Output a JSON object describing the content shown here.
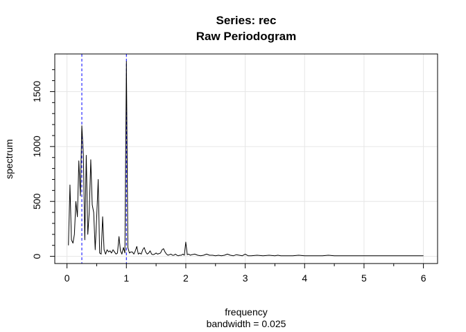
{
  "chart_data": {
    "type": "line",
    "title": "Series: rec",
    "subtitle": "Raw Periodogram",
    "xlabel": "frequency",
    "xlabel_sub": "bandwidth = 0.025",
    "ylabel": "spectrum",
    "xlim": [
      0,
      6
    ],
    "ylim": [
      0,
      1780
    ],
    "x_ticks": [
      0,
      1,
      2,
      3,
      4,
      5,
      6
    ],
    "x_tick_labels": [
      "0",
      "1",
      "2",
      "3",
      "4",
      "5",
      "6"
    ],
    "y_ticks": [
      0,
      500,
      1000,
      1500
    ],
    "y_tick_labels": [
      "0",
      "500",
      "1000",
      "1500"
    ],
    "grid": true,
    "line_color": "#000000",
    "grid_color": "#e6e6e6",
    "vline_color": "#0000ff",
    "vlines": [
      0.25,
      1.0
    ],
    "series": [
      {
        "name": "rec",
        "x": [
          0.025,
          0.05,
          0.075,
          0.1,
          0.125,
          0.15,
          0.175,
          0.2,
          0.225,
          0.25,
          0.275,
          0.3,
          0.325,
          0.35,
          0.375,
          0.4,
          0.425,
          0.45,
          0.475,
          0.5,
          0.525,
          0.55,
          0.575,
          0.6,
          0.625,
          0.65,
          0.675,
          0.7,
          0.725,
          0.75,
          0.775,
          0.8,
          0.825,
          0.85,
          0.875,
          0.9,
          0.925,
          0.95,
          0.975,
          1.0,
          1.025,
          1.05,
          1.075,
          1.1,
          1.125,
          1.15,
          1.175,
          1.2,
          1.225,
          1.25,
          1.275,
          1.3,
          1.325,
          1.35,
          1.375,
          1.4,
          1.425,
          1.45,
          1.475,
          1.5,
          1.525,
          1.55,
          1.575,
          1.6,
          1.625,
          1.65,
          1.675,
          1.7,
          1.725,
          1.75,
          1.775,
          1.8,
          1.825,
          1.85,
          1.875,
          1.9,
          1.925,
          1.95,
          1.975,
          2.0,
          2.025,
          2.05,
          2.075,
          2.1,
          2.15,
          2.2,
          2.25,
          2.3,
          2.35,
          2.4,
          2.45,
          2.5,
          2.55,
          2.6,
          2.65,
          2.7,
          2.75,
          2.8,
          2.85,
          2.9,
          2.95,
          3.0,
          3.05,
          3.1,
          3.2,
          3.3,
          3.4,
          3.5,
          3.55,
          3.6,
          3.7,
          3.8,
          3.9,
          4.0,
          4.1,
          4.2,
          4.3,
          4.4,
          4.5,
          4.6,
          4.7,
          4.8,
          4.9,
          5.0,
          5.1,
          5.2,
          5.3,
          5.4,
          5.5,
          5.6,
          5.7,
          5.8,
          5.9,
          6.0
        ],
        "y": [
          100,
          650,
          150,
          120,
          200,
          500,
          360,
          870,
          550,
          1190,
          930,
          150,
          920,
          200,
          400,
          880,
          470,
          400,
          60,
          350,
          700,
          30,
          20,
          360,
          60,
          20,
          60,
          40,
          50,
          30,
          60,
          40,
          20,
          30,
          180,
          50,
          20,
          80,
          30,
          1775,
          80,
          30,
          40,
          40,
          20,
          50,
          90,
          20,
          30,
          20,
          60,
          80,
          40,
          20,
          30,
          50,
          20,
          15,
          20,
          30,
          20,
          25,
          30,
          60,
          70,
          40,
          20,
          10,
          15,
          20,
          10,
          10,
          20,
          10,
          5,
          10,
          10,
          20,
          10,
          130,
          15,
          20,
          10,
          15,
          20,
          10,
          5,
          10,
          20,
          10,
          10,
          5,
          10,
          5,
          10,
          20,
          10,
          5,
          15,
          10,
          5,
          20,
          5,
          5,
          10,
          5,
          10,
          5,
          10,
          5,
          5,
          5,
          10,
          5,
          5,
          5,
          5,
          10,
          5,
          5,
          5,
          5,
          5,
          5,
          5,
          5,
          5,
          5,
          5,
          5,
          5,
          5,
          5,
          5
        ]
      }
    ]
  }
}
